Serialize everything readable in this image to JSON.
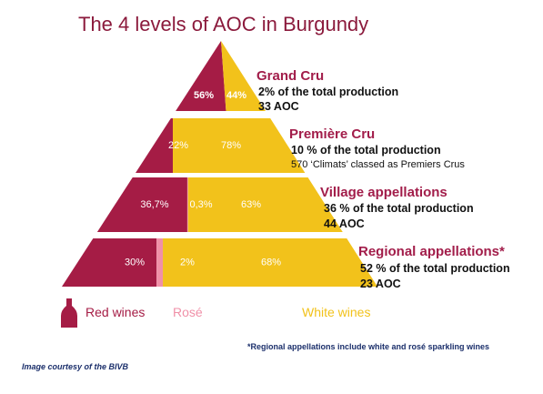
{
  "title": "The 4 levels of AOC in Burgundy",
  "colors": {
    "red": "#a51c45",
    "rose": "#f090a8",
    "white": "#f2c21b",
    "heading": "#a21d4a",
    "title": "#8b1a3c",
    "note": "#1b2f6b"
  },
  "tiers": [
    {
      "name": "Grand Cru",
      "share": "2% of the total production",
      "detail": "33 AOC",
      "red_label": "56%",
      "rose_label": "",
      "white_label": "44%",
      "red": 56,
      "rose": 0,
      "white": 44
    },
    {
      "name": "Première Cru",
      "share": "10 % of the total production",
      "detail": "570 ‘Climats’ classed as Premiers Crus",
      "red_label": "22%",
      "rose_label": "",
      "white_label": "78%",
      "red": 22,
      "rose": 0,
      "white": 78
    },
    {
      "name": "Village appellations",
      "share": "36 % of the total production",
      "detail": "44 AOC",
      "red_label": "36,7%",
      "rose_label": "0,3%",
      "white_label": "63%",
      "red": 36.7,
      "rose": 0.3,
      "white": 63
    },
    {
      "name": "Regional appellations*",
      "share": "52 % of the total production",
      "detail": "23 AOC",
      "red_label": "30%",
      "rose_label": "2%",
      "white_label": "68%",
      "red": 30,
      "rose": 2,
      "white": 68
    }
  ],
  "legend": {
    "red": "Red wines",
    "rose": "Rosé",
    "white": "White wines",
    "icon": "wine-bottle-icon"
  },
  "footnote": "*Regional appellations include white and rosé sparkling wines",
  "courtesy": "Image courtesy of the BIVB"
}
